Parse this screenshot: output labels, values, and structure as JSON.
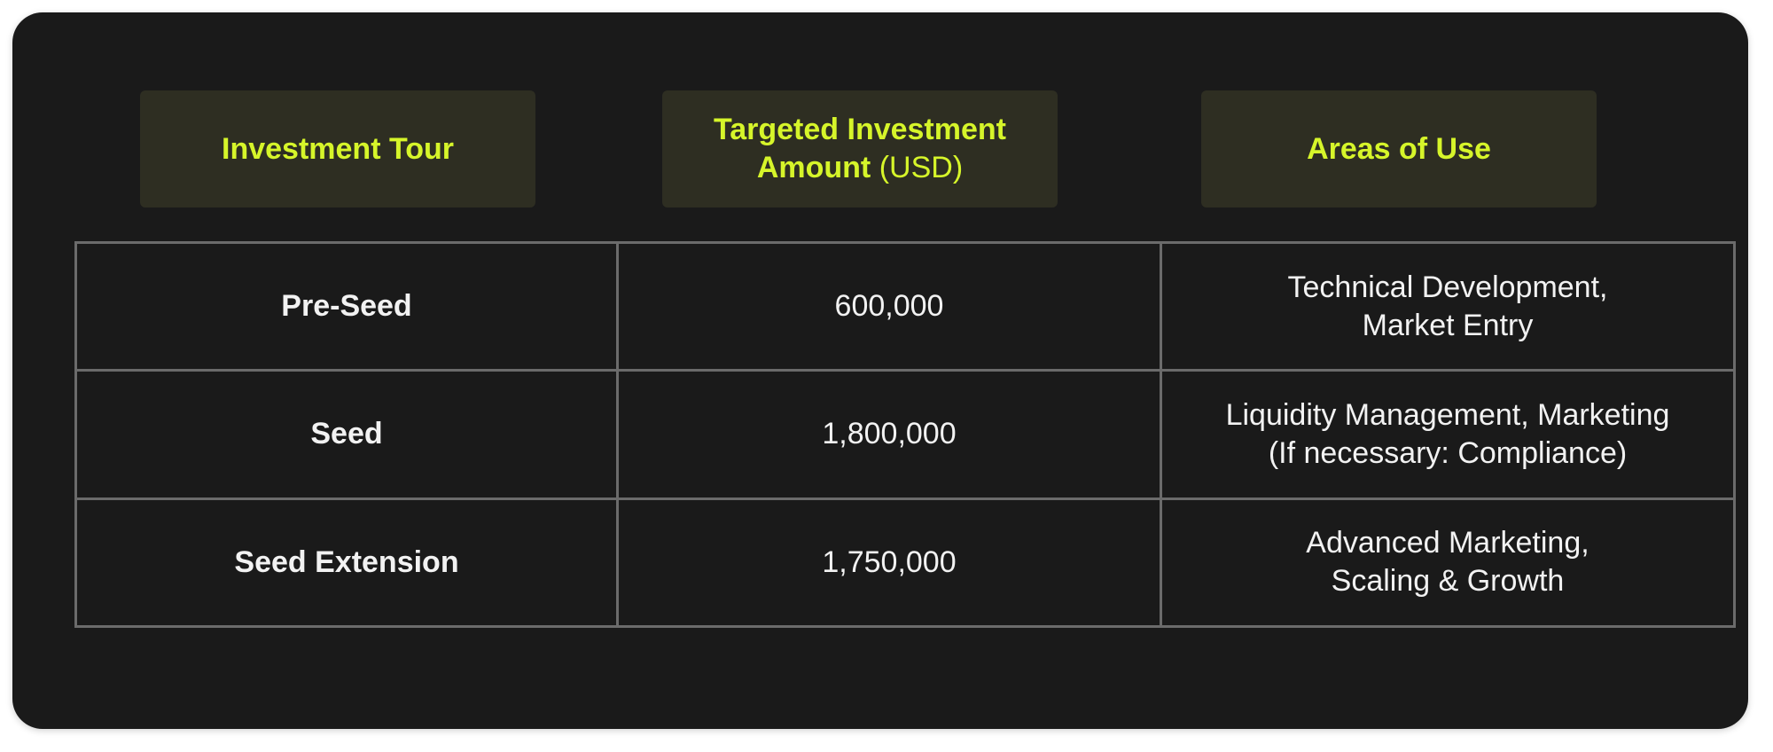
{
  "headers": {
    "tour": "Investment Tour",
    "amount_bold": "Targeted Investment Amount",
    "amount_unit": "(USD)",
    "areas": "Areas of Use"
  },
  "rows": [
    {
      "tour": "Pre-Seed",
      "amount": "600,000",
      "areas": "Technical Development,\nMarket Entry"
    },
    {
      "tour": "Seed",
      "amount": "1,800,000",
      "areas": "Liquidity Management, Marketing\n(If necessary: Compliance)"
    },
    {
      "tour": "Seed Extension",
      "amount": "1,750,000",
      "areas": "Advanced Marketing,\nScaling & Growth"
    }
  ],
  "colors": {
    "background": "#1a1a1a",
    "header_bg": "#2e2e22",
    "accent": "#d6f52a",
    "text": "#f2f2f2",
    "grid_line": "#6b6b6b"
  }
}
